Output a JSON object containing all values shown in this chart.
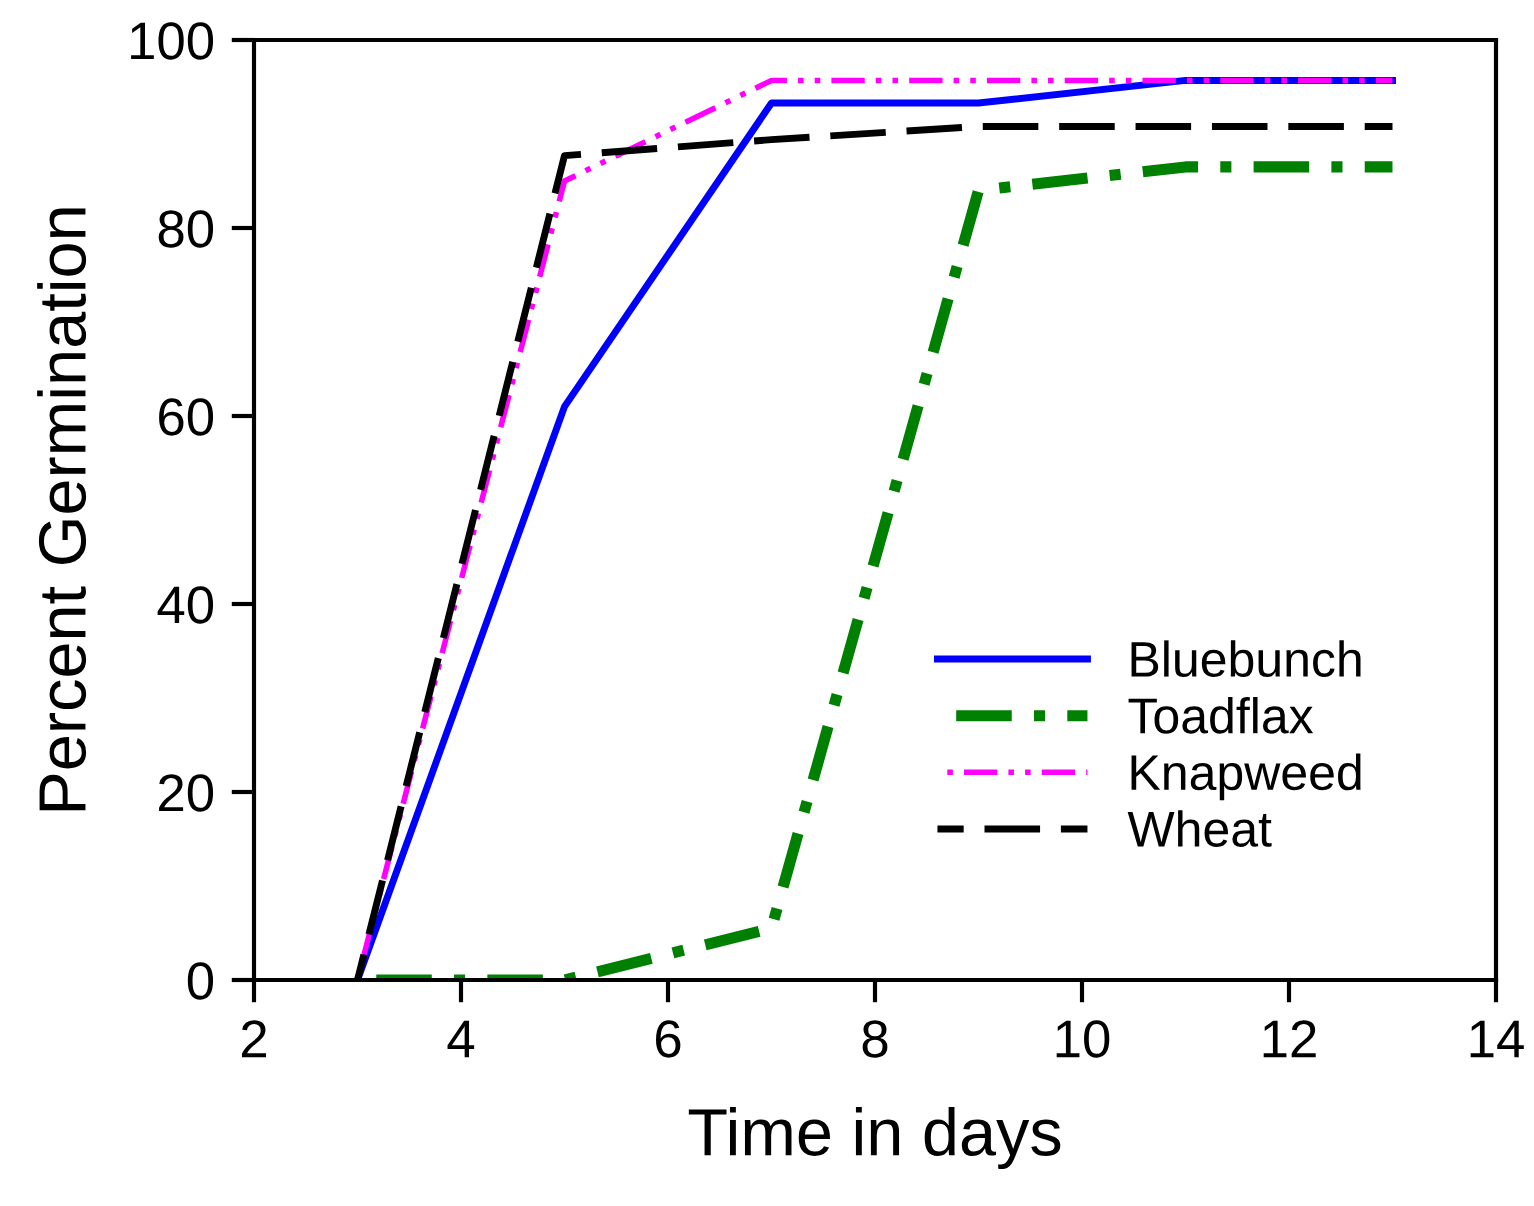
{
  "chart_data": {
    "type": "line",
    "xlabel": "Time in days",
    "ylabel": "Percent Germination",
    "x": [
      3,
      5,
      7,
      9,
      11,
      13
    ],
    "series": [
      {
        "name": "Bluebunch",
        "color": "#0000ff",
        "line_style": "solid",
        "values": [
          0,
          61,
          93.3,
          93.3,
          95.7,
          95.7
        ]
      },
      {
        "name": "Toadflax",
        "color": "#008000",
        "line_style": "dashdot",
        "values": [
          0,
          0,
          5.5,
          84,
          86.5,
          86.5
        ]
      },
      {
        "name": "Knapweed",
        "color": "#ff00ff",
        "line_style": "dashdotdot",
        "values": [
          0,
          85,
          95.7,
          95.7,
          95.7,
          95.7
        ]
      },
      {
        "name": "Wheat",
        "color": "#000000",
        "line_style": "dashed",
        "values": [
          0,
          87.7,
          89.4,
          90.8,
          90.8,
          90.8
        ]
      }
    ],
    "xlim": [
      2,
      14
    ],
    "xticks": [
      2,
      4,
      6,
      8,
      10,
      12,
      14
    ],
    "ylim": [
      0,
      100
    ],
    "yticks": [
      0,
      20,
      40,
      60,
      80,
      100
    ],
    "grid": false,
    "legend": "bottom right",
    "marker": "none"
  }
}
